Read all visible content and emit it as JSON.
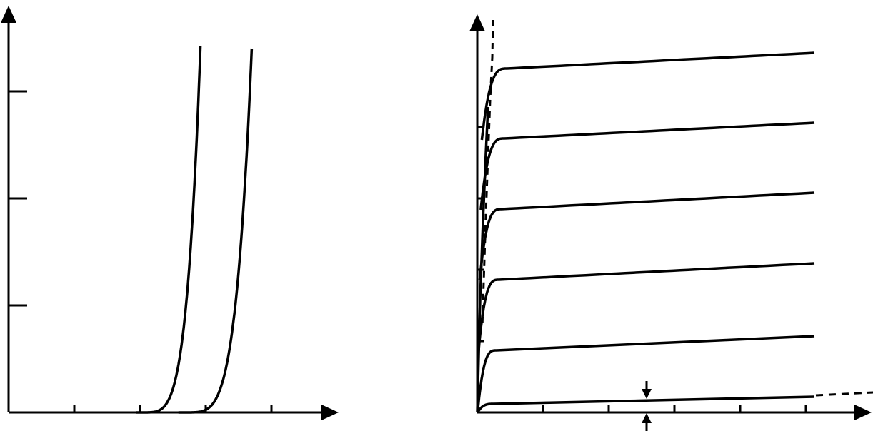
{
  "colors": {
    "ink": "#000000",
    "background": "#ffffff"
  },
  "left_panel": {
    "x_axis": {
      "range": [
        0,
        5
      ],
      "ticks": [
        1,
        2,
        3,
        4
      ]
    },
    "y_axis": {
      "range": [
        0,
        3.8
      ],
      "ticks": [
        1,
        2,
        3
      ]
    },
    "curves": [
      {
        "id": "transfer-curve-1",
        "onset": 2.0,
        "end": [
          2.92,
          3.42
        ]
      },
      {
        "id": "transfer-curve-2",
        "onset": 2.65,
        "end": [
          3.7,
          3.4
        ]
      }
    ]
  },
  "right_panel": {
    "x_axis": {
      "range": [
        0,
        6
      ],
      "ticks": [
        1,
        2,
        3,
        4,
        5
      ]
    },
    "y_axis": {
      "range": [
        0,
        5.4
      ],
      "ticks": [
        1,
        2,
        3,
        4
      ]
    },
    "saturation_curves": [
      {
        "id": "output-curve-1",
        "sat_level": 0.12,
        "end_level": 0.22
      },
      {
        "id": "output-curve-2",
        "sat_level": 0.87,
        "end_level": 1.07
      },
      {
        "id": "output-curve-3",
        "sat_level": 1.86,
        "end_level": 2.09
      },
      {
        "id": "output-curve-4",
        "sat_level": 2.85,
        "end_level": 3.08
      },
      {
        "id": "output-curve-5",
        "sat_level": 3.84,
        "end_level": 4.06
      },
      {
        "id": "output-curve-6",
        "sat_level": 4.82,
        "end_level": 5.04
      }
    ],
    "linear_boundary_dashed": true,
    "baseline_dashed_extension": true,
    "gap_marker_arrows": true
  }
}
